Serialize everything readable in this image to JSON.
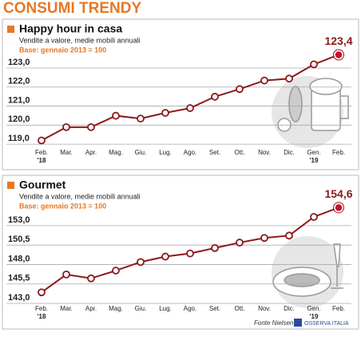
{
  "title": "CONSUMI TRENDY",
  "footer": {
    "source": "Fonte Nielsen",
    "logo": "OSSERVA ITALIA"
  },
  "chart_data": [
    {
      "type": "line",
      "title": "Happy hour in casa",
      "subtitle": "Vendite a valore, medie mobili annuali",
      "note": "Base: gennaio 2013 = 100",
      "categories": [
        "Feb.",
        "Mar.",
        "Apr.",
        "Mag.",
        "Giu.",
        "Lug.",
        "Ago.",
        "Set.",
        "Ott.",
        "Nov.",
        "Dic.",
        "Gen.",
        "Feb."
      ],
      "year_labels": [
        "'18",
        null,
        null,
        null,
        null,
        null,
        null,
        null,
        null,
        null,
        null,
        "'19",
        null
      ],
      "series": [
        {
          "name": "Happy hour in casa",
          "color": "#8b1a1a",
          "values": [
            118.9,
            119.6,
            119.6,
            120.2,
            120.05,
            120.35,
            120.6,
            121.2,
            121.6,
            122.05,
            122.15,
            122.9,
            123.4
          ],
          "value_labels": [
            null,
            null,
            null,
            null,
            null,
            null,
            null,
            null,
            null,
            null,
            null,
            null,
            "123,4"
          ]
        }
      ],
      "ylim": [
        118.5,
        123.9
      ],
      "yticks": [
        {
          "value": 119,
          "label": "119,0"
        },
        {
          "value": 120,
          "label": "120,0"
        },
        {
          "value": 121,
          "label": "121,0"
        },
        {
          "value": 122,
          "label": "122,0"
        },
        {
          "value": 123,
          "label": "123,0"
        }
      ],
      "grid": true
    },
    {
      "type": "line",
      "title": "Gourmet",
      "subtitle": "Vendite a valore, medie mobili annuali",
      "note": "Base: gennaio 2013 = 100",
      "categories": [
        "Feb.",
        "Mar.",
        "Apr.",
        "Mag.",
        "Giu.",
        "Lug.",
        "Ago.",
        "Set.",
        "Ott.",
        "Nov.",
        "Dic.",
        "Gen.",
        "Feb."
      ],
      "year_labels": [
        "'18",
        null,
        null,
        null,
        null,
        null,
        null,
        null,
        null,
        null,
        null,
        "'19",
        null
      ],
      "series": [
        {
          "name": "Gourmet",
          "color": "#8b1a1a",
          "values": [
            143.7,
            146.0,
            145.5,
            146.5,
            147.6,
            148.3,
            148.7,
            149.4,
            150.1,
            150.7,
            151.0,
            153.4,
            154.6
          ],
          "value_labels": [
            null,
            null,
            null,
            null,
            null,
            null,
            null,
            null,
            null,
            null,
            null,
            null,
            "154,6"
          ]
        }
      ],
      "ylim": [
        142,
        155.5
      ],
      "yticks": [
        {
          "value": 143,
          "label": "143,0"
        },
        {
          "value": 145.5,
          "label": "145,5"
        },
        {
          "value": 148,
          "label": "148,0"
        },
        {
          "value": 150.5,
          "label": "150,5"
        },
        {
          "value": 153,
          "label": "153,0"
        }
      ],
      "grid": true
    }
  ]
}
